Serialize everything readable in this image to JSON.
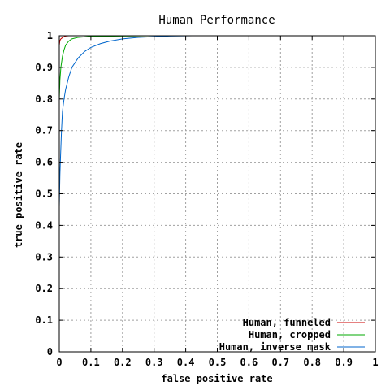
{
  "chart_data": {
    "type": "line",
    "title": "Human Performance",
    "xlabel": "false positive rate",
    "ylabel": "true positive rate",
    "xlim": [
      0,
      1
    ],
    "ylim": [
      0,
      1
    ],
    "grid": true,
    "legend_position": "bottom-right",
    "x_ticks": [
      "0",
      "0.1",
      "0.2",
      "0.3",
      "0.4",
      "0.5",
      "0.6",
      "0.7",
      "0.8",
      "0.9",
      "1"
    ],
    "y_ticks": [
      "0",
      "0.1",
      "0.2",
      "0.3",
      "0.4",
      "0.5",
      "0.6",
      "0.7",
      "0.8",
      "0.9",
      "1"
    ],
    "series": [
      {
        "name": "Human, funneled",
        "color": "#cc0000",
        "points": [
          [
            0.0,
            0.0
          ],
          [
            0.0,
            0.97
          ],
          [
            0.002,
            0.985
          ],
          [
            0.005,
            0.99
          ],
          [
            0.01,
            0.994
          ],
          [
            0.015,
            0.997
          ],
          [
            0.02,
            0.999
          ],
          [
            0.03,
            1.0
          ],
          [
            1.0,
            1.0
          ]
        ]
      },
      {
        "name": "Human, cropped",
        "color": "#00aa00",
        "points": [
          [
            0.0,
            0.0
          ],
          [
            0.0,
            0.8
          ],
          [
            0.002,
            0.86
          ],
          [
            0.005,
            0.9
          ],
          [
            0.01,
            0.935
          ],
          [
            0.015,
            0.955
          ],
          [
            0.02,
            0.97
          ],
          [
            0.03,
            0.983
          ],
          [
            0.04,
            0.99
          ],
          [
            0.06,
            0.995
          ],
          [
            0.1,
            0.998
          ],
          [
            0.2,
            0.999
          ],
          [
            0.3,
            1.0
          ],
          [
            1.0,
            1.0
          ]
        ]
      },
      {
        "name": "Human, inverse mask",
        "color": "#0066cc",
        "points": [
          [
            0.0,
            0.0
          ],
          [
            0.0,
            0.46
          ],
          [
            0.002,
            0.56
          ],
          [
            0.004,
            0.62
          ],
          [
            0.007,
            0.7
          ],
          [
            0.01,
            0.76
          ],
          [
            0.015,
            0.8
          ],
          [
            0.02,
            0.83
          ],
          [
            0.03,
            0.87
          ],
          [
            0.04,
            0.9
          ],
          [
            0.06,
            0.93
          ],
          [
            0.08,
            0.95
          ],
          [
            0.1,
            0.963
          ],
          [
            0.13,
            0.975
          ],
          [
            0.16,
            0.983
          ],
          [
            0.2,
            0.99
          ],
          [
            0.25,
            0.995
          ],
          [
            0.3,
            0.997
          ],
          [
            0.35,
            0.999
          ],
          [
            0.42,
            1.0
          ],
          [
            1.0,
            1.0
          ]
        ]
      }
    ]
  }
}
